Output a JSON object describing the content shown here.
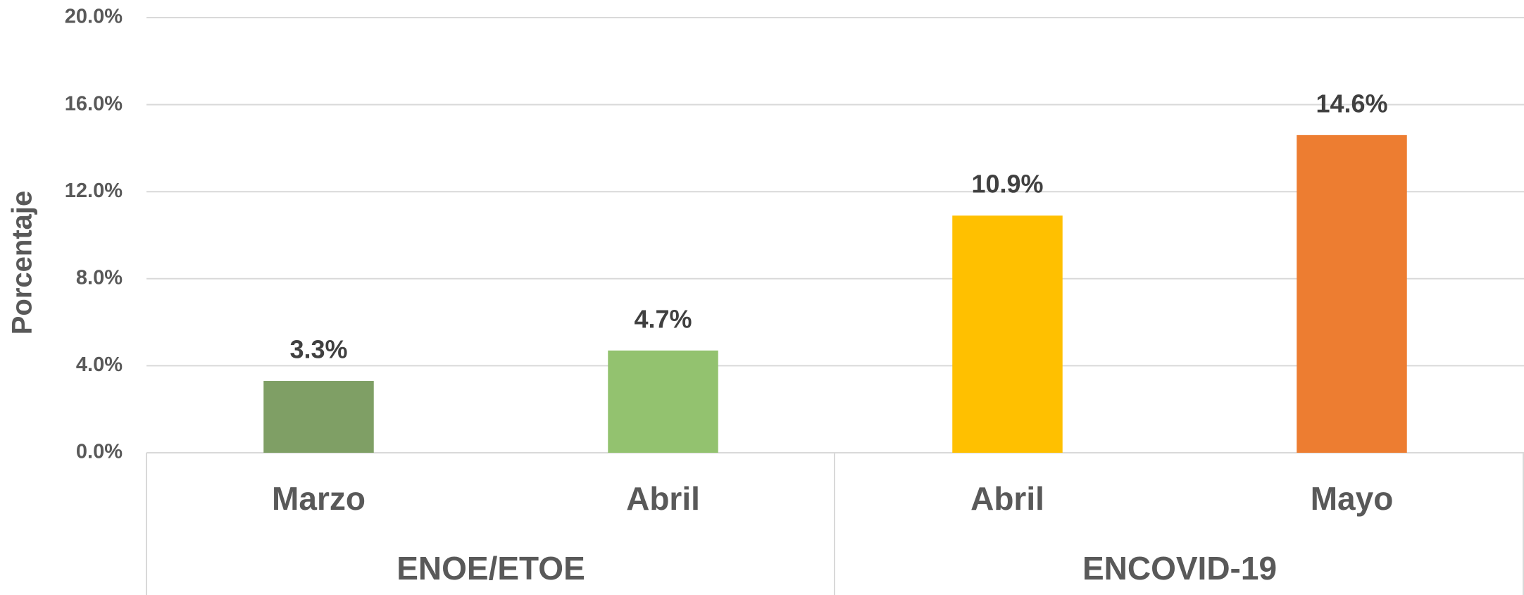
{
  "chart_data": {
    "type": "bar",
    "y_label": "Porcentaje",
    "categories": [
      "Marzo",
      "Abril",
      "Abril",
      "Mayo"
    ],
    "values": [
      3.3,
      4.7,
      10.9,
      14.6
    ],
    "value_labels": [
      "3.3%",
      "4.7%",
      "10.9%",
      "14.6%"
    ],
    "colors": [
      "#7f9f65",
      "#93c26f",
      "#ffc000",
      "#ed7d31"
    ],
    "groups": [
      {
        "label": "ENOE/ETOE",
        "size": 2
      },
      {
        "label": "ENCOVID-19",
        "size": 2
      }
    ],
    "ylim": [
      0,
      20
    ],
    "yticks": [
      {
        "value": 0,
        "label": "0.0%"
      },
      {
        "value": 4,
        "label": "4.0%"
      },
      {
        "value": 8,
        "label": "8.0%"
      },
      {
        "value": 12,
        "label": "12.0%"
      },
      {
        "value": 16,
        "label": "16.0%"
      },
      {
        "value": 20,
        "label": "20.0%"
      }
    ],
    "grid": true
  }
}
